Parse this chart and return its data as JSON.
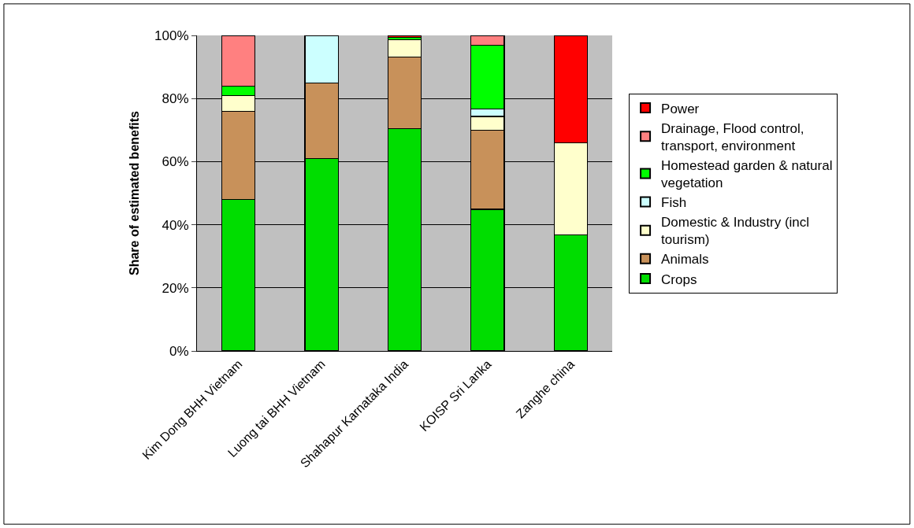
{
  "chart_data": {
    "type": "bar",
    "stacked": true,
    "ylabel": "Share of estimated benefits",
    "categories": [
      "Kim Dong BHH Vietnam",
      "Luong tai BHH Vietnam",
      "Shahapur Karnataka India",
      "KOISP Sri Lanka",
      "Zanghe china"
    ],
    "series": [
      {
        "name": "Crops",
        "color": "#00dd00",
        "values": [
          48,
          61,
          70.4,
          44.9,
          36.8
        ]
      },
      {
        "name": "Animals",
        "color": "#c8915a",
        "values": [
          28,
          24,
          22.7,
          25.1,
          null
        ]
      },
      {
        "name": "Domestic & Industry (incl tourism)",
        "color": "#ffffcc",
        "values": [
          5,
          null,
          5.6,
          4.3,
          29.2
        ]
      },
      {
        "name": "Fish",
        "color": "#ccffff",
        "values": [
          null,
          15,
          null,
          2.3,
          null
        ]
      },
      {
        "name": "Homestead garden & natural vegetation",
        "color": "#00ff00",
        "values": [
          3,
          null,
          0.6,
          20.2,
          null
        ]
      },
      {
        "name": "Drainage, Flood control, transport, environment",
        "color": "#ff8080",
        "values": [
          16,
          null,
          null,
          3.2,
          null
        ]
      },
      {
        "name": "Power",
        "color": "#ff0000",
        "values": [
          null,
          null,
          0.7,
          null,
          34
        ]
      }
    ],
    "ylim": [
      0,
      100
    ],
    "yticks": [
      {
        "value": 0,
        "label": "0%"
      },
      {
        "value": 20,
        "label": "20%"
      },
      {
        "value": 40,
        "label": "40%"
      },
      {
        "value": 60,
        "label": "60%"
      },
      {
        "value": 80,
        "label": "80%"
      },
      {
        "value": 100,
        "label": "100%"
      }
    ],
    "grid": "y",
    "legend": "right"
  }
}
